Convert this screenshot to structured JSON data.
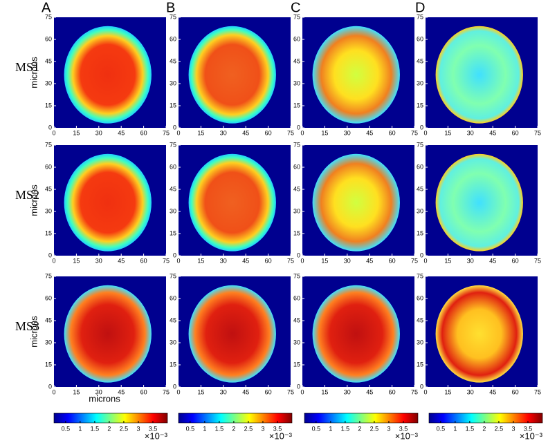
{
  "chart_data": {
    "type": "heatmap",
    "column_labels": [
      "A",
      "B",
      "C",
      "D"
    ],
    "row_labels": [
      "MS1",
      "MS2",
      "MS3"
    ],
    "xlabel": "microns",
    "ylabel": "microns",
    "xlim": [
      0,
      75
    ],
    "ylim": [
      0,
      75
    ],
    "xticks": [
      0,
      15,
      30,
      45,
      60,
      75
    ],
    "yticks": [
      0,
      15,
      30,
      45,
      60,
      75
    ],
    "colorbar": {
      "lim": [
        0.1,
        4
      ],
      "ticks": [
        0.5,
        1,
        1.5,
        2,
        2.5,
        3,
        3.5
      ],
      "scale_label": "×10⁻³"
    }
  }
}
